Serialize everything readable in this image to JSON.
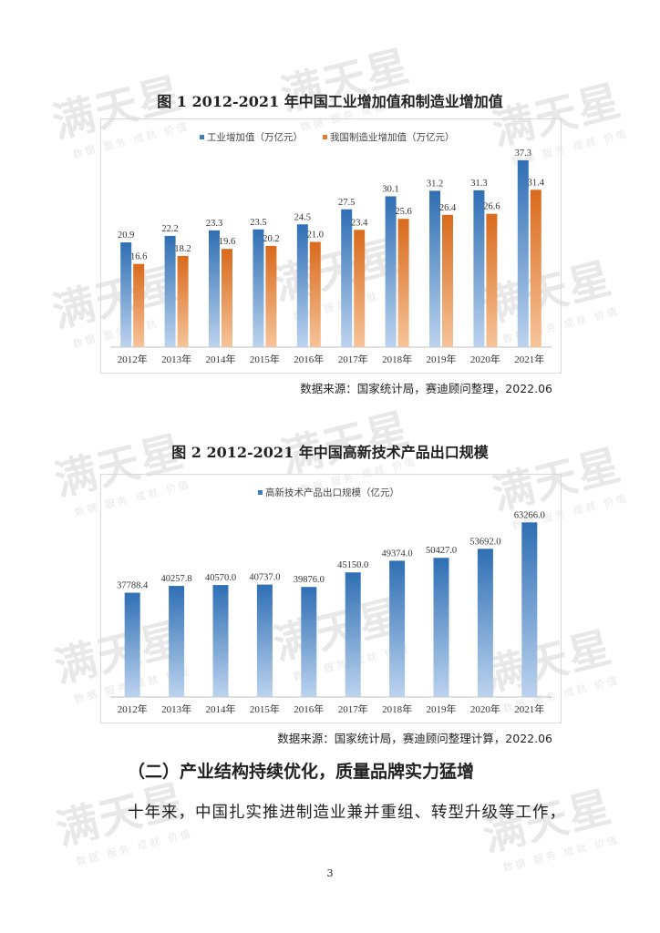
{
  "watermark": "满天星",
  "watermark_sub": "数据 服务 成就 价值",
  "figure1": {
    "title": "图 1 2012-2021 年中国工业增加值和制造业增加值",
    "source": "数据来源：国家统计局，赛迪顾问整理，2022.06",
    "chart_data": {
      "type": "bar",
      "categories": [
        "2012年",
        "2013年",
        "2014年",
        "2015年",
        "2016年",
        "2017年",
        "2018年",
        "2019年",
        "2020年",
        "2021年"
      ],
      "series": [
        {
          "name": "工业增加值（万亿元）",
          "color": "#3b7cc0",
          "values": [
            20.9,
            22.2,
            23.3,
            23.5,
            24.5,
            27.5,
            30.1,
            31.2,
            31.3,
            37.3
          ]
        },
        {
          "name": "我国制造业增加值（万亿元）",
          "color": "#e07b2e",
          "values": [
            16.6,
            18.2,
            19.6,
            20.2,
            21.0,
            23.4,
            25.6,
            26.4,
            26.6,
            31.4
          ]
        }
      ],
      "labels": [
        [
          "20.9",
          "22.2",
          "23.3",
          "23.5",
          "24.5",
          "27.5",
          "30.1",
          "31.2",
          "31.3",
          "37.3"
        ],
        [
          "16.6",
          "18.2",
          "19.6",
          "20.2",
          "21.0",
          "23.4",
          "25.6",
          "26.4",
          "26.6",
          "31.4"
        ]
      ],
      "ylim": [
        0,
        40
      ],
      "legend": "top"
    }
  },
  "figure2": {
    "title": "图 2 2012-2021 年中国高新技术产品出口规模",
    "source": "数据来源：国家统计局，赛迪顾问整理计算，2022.06",
    "chart_data": {
      "type": "bar",
      "categories": [
        "2012年",
        "2013年",
        "2014年",
        "2015年",
        "2016年",
        "2017年",
        "2018年",
        "2019年",
        "2020年",
        "2021年"
      ],
      "series": [
        {
          "name": "高新技术产品出口规模（亿元）",
          "color": "#3b7cc0",
          "values": [
            37788.4,
            40257.8,
            40570.0,
            40737.0,
            39876.0,
            45150.0,
            49374.0,
            50427.0,
            53692.0,
            63266.0
          ]
        }
      ],
      "labels": [
        [
          "37788.4",
          "40257.8",
          "40570.0",
          "40737.0",
          "39876.0",
          "45150.0",
          "49374.0",
          "50427.0",
          "53692.0",
          "63266.0"
        ]
      ],
      "ylim": [
        0,
        68000
      ],
      "legend": "top"
    }
  },
  "section_heading": "（二）产业结构持续优化，质量品牌实力猛增",
  "paragraph": "十年来，中国扎实推进制造业兼并重组、转型升级等工作，",
  "page_number": "3"
}
